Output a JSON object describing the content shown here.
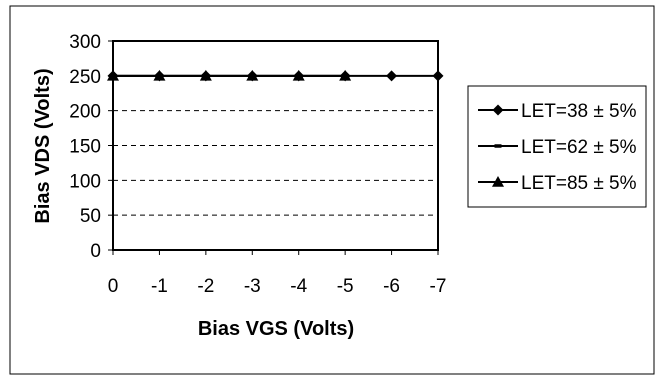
{
  "chart_data": {
    "type": "line",
    "title": "",
    "xlabel": "Bias VGS (Volts)",
    "ylabel": "Bias VDS (Volts)",
    "categories": [
      "0",
      "-1",
      "-2",
      "-3",
      "-4",
      "-5",
      "-6",
      "-7"
    ],
    "x": [
      0,
      -1,
      -2,
      -3,
      -4,
      -5,
      -6,
      -7
    ],
    "ylim": [
      0,
      300
    ],
    "yticks": [
      0,
      50,
      100,
      150,
      200,
      250,
      300
    ],
    "grid": "horizontal dashed",
    "legend_position": "right",
    "series": [
      {
        "name": "LET=38 ± 5%",
        "marker": "diamond",
        "values": [
          250,
          250,
          250,
          250,
          250,
          250,
          250,
          250
        ]
      },
      {
        "name": "LET=62 ± 5%",
        "marker": "square",
        "values": [
          250,
          250,
          250,
          250,
          250,
          250,
          null,
          null
        ]
      },
      {
        "name": "LET=85 ± 5%",
        "marker": "triangle",
        "values": [
          250,
          250,
          250,
          250,
          250,
          250,
          null,
          null
        ]
      }
    ]
  }
}
